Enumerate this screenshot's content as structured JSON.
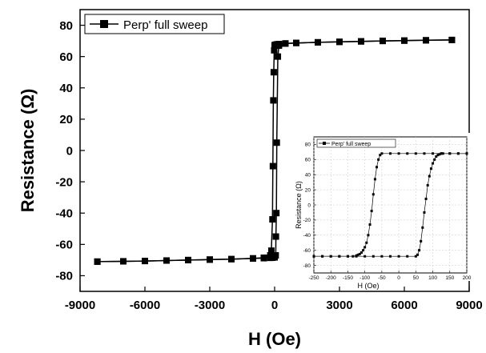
{
  "chart_data": [
    {
      "type": "line",
      "xlabel": "H (Oe)",
      "ylabel": "Resistance (Ω)",
      "xlim": [
        -9000,
        9000
      ],
      "ylim": [
        -90,
        90
      ],
      "xticks": [
        "-9000",
        "-6000",
        "-3000",
        "0",
        "3000",
        "6000",
        "9000"
      ],
      "yticks": [
        "-80",
        "-60",
        "-40",
        "-20",
        "0",
        "20",
        "40",
        "60",
        "80"
      ],
      "legend": "top-left",
      "grid": false,
      "series": [
        {
          "name": "Perp' full sweep",
          "marker": "square",
          "branches": [
            {
              "x": [
                -8200,
                -7000,
                -6000,
                -5000,
                -4000,
                -3000,
                -2000,
                -1000,
                -500,
                -200,
                -100,
                0,
                50,
                60,
                80,
                100,
                150,
                200,
                500,
                1000,
                2000,
                3000,
                4000,
                5000,
                6000,
                7000,
                8200
              ],
              "y": [
                -71,
                -70.8,
                -70.6,
                -70.3,
                -70,
                -69.7,
                -69.4,
                -69,
                -68.8,
                -68.6,
                -68.5,
                -68.3,
                -67,
                -55,
                -40,
                5,
                60,
                67,
                68.3,
                68.7,
                69.1,
                69.4,
                69.7,
                70,
                70.2,
                70.4,
                70.6
              ]
            },
            {
              "x": [
                8200,
                7000,
                6000,
                5000,
                4000,
                3000,
                2000,
                1000,
                500,
                200,
                100,
                50,
                0,
                -20,
                -40,
                -60,
                -80,
                -100,
                -150,
                -200,
                -500,
                -1000,
                -2000,
                -3000,
                -4000,
                -5000,
                -6000,
                -7000,
                -8200
              ],
              "y": [
                70.6,
                70.4,
                70.2,
                70,
                69.7,
                69.4,
                69.1,
                68.7,
                68.4,
                68,
                67.8,
                67.6,
                67.3,
                64,
                50,
                32,
                -10,
                -44,
                -64,
                -67,
                -68.5,
                -68.9,
                -69.4,
                -69.7,
                -70,
                -70.3,
                -70.6,
                -70.8,
                -71
              ]
            }
          ]
        }
      ]
    },
    {
      "type": "line",
      "xlabel": "H (Oe)",
      "ylabel": "Resistance (Ω)",
      "xlim": [
        -250,
        200
      ],
      "ylim": [
        -90,
        90
      ],
      "xticks": [
        "-250",
        "-200",
        "-150",
        "-100",
        "-50",
        "0",
        "50",
        "100",
        "150",
        "200"
      ],
      "yticks": [
        "-80",
        "-60",
        "-40",
        "-20",
        "0",
        "20",
        "40",
        "60",
        "80"
      ],
      "legend": "top-left",
      "grid": true,
      "series": [
        {
          "name": "Perp' full sweep",
          "marker": "square",
          "branches": [
            {
              "x": [
                -250,
                -225,
                -200,
                -175,
                -150,
                -125,
                -100,
                -75,
                -50,
                -25,
                0,
                25,
                50,
                55,
                60,
                65,
                70,
                75,
                80,
                85,
                90,
                95,
                100,
                105,
                110,
                115,
                120,
                125,
                130,
                150,
                175,
                200
              ],
              "y": [
                -68,
                -68,
                -68,
                -68,
                -68,
                -68,
                -68,
                -68,
                -68,
                -68,
                -68,
                -68,
                -68,
                -66,
                -60,
                -48,
                -30,
                -10,
                8,
                26,
                38,
                48,
                55,
                60,
                64,
                66,
                67,
                68,
                68,
                68,
                68,
                68
              ]
            },
            {
              "x": [
                200,
                175,
                150,
                125,
                100,
                75,
                50,
                25,
                0,
                -25,
                -50,
                -55,
                -60,
                -65,
                -70,
                -75,
                -80,
                -85,
                -90,
                -95,
                -100,
                -105,
                -110,
                -115,
                -120,
                -125,
                -135,
                -150,
                -175,
                -200,
                -225,
                -250
              ],
              "y": [
                68,
                68,
                68,
                68,
                68,
                68,
                68,
                68,
                68,
                68,
                68,
                66,
                60,
                50,
                34,
                14,
                -8,
                -26,
                -40,
                -50,
                -56,
                -60,
                -63,
                -65,
                -66,
                -67,
                -68,
                -68,
                -68,
                -68,
                -68,
                -68
              ]
            }
          ]
        }
      ]
    }
  ]
}
